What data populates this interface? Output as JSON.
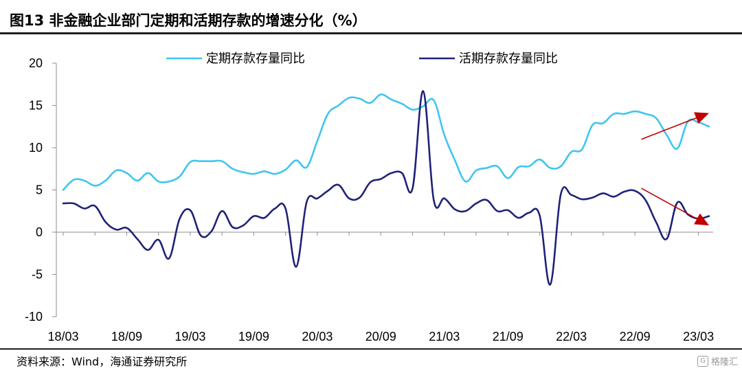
{
  "title": "图13 非金融企业部门定期和活期存款的增速分化（%）",
  "source": "资料来源：Wind，海通证券研究所",
  "watermark": "格隆汇",
  "chart_data": {
    "type": "line",
    "title": "",
    "xlabel": "",
    "ylabel": "",
    "ylim": [
      -10,
      20
    ],
    "yticks": [
      -10,
      -5,
      0,
      5,
      10,
      15,
      20
    ],
    "xtick_labels": [
      "18/03",
      "18/09",
      "19/03",
      "19/09",
      "20/03",
      "20/09",
      "21/03",
      "21/09",
      "22/03",
      "22/09",
      "23/03"
    ],
    "x": [
      "18/03",
      "18/04",
      "18/05",
      "18/06",
      "18/07",
      "18/08",
      "18/09",
      "18/10",
      "18/11",
      "18/12",
      "19/01",
      "19/02",
      "19/03",
      "19/04",
      "19/05",
      "19/06",
      "19/07",
      "19/08",
      "19/09",
      "19/10",
      "19/11",
      "19/12",
      "20/01",
      "20/02",
      "20/03",
      "20/04",
      "20/05",
      "20/06",
      "20/07",
      "20/08",
      "20/09",
      "20/10",
      "20/11",
      "20/12",
      "21/01",
      "21/02",
      "21/03",
      "21/04",
      "21/05",
      "21/06",
      "21/07",
      "21/08",
      "21/09",
      "21/10",
      "21/11",
      "21/12",
      "22/01",
      "22/02",
      "22/03",
      "22/04",
      "22/05",
      "22/06",
      "22/07",
      "22/08",
      "22/09",
      "22/10",
      "22/11",
      "22/12",
      "23/01",
      "23/02",
      "23/03",
      "23/04"
    ],
    "legend_position": "top",
    "grid": false,
    "series": [
      {
        "name": "定期存款存量同比",
        "color": "#3ec6ee",
        "values": [
          5.0,
          6.2,
          6.1,
          5.5,
          6.1,
          7.3,
          7.0,
          6.1,
          7.0,
          6.0,
          6.0,
          6.6,
          8.3,
          8.4,
          8.4,
          8.4,
          7.5,
          7.1,
          6.9,
          7.2,
          6.9,
          7.4,
          8.5,
          7.7,
          10.8,
          14.0,
          15.0,
          15.9,
          15.8,
          15.3,
          16.3,
          15.7,
          15.2,
          14.5,
          14.9,
          15.6,
          11.5,
          8.5,
          6.0,
          7.3,
          7.6,
          7.8,
          6.4,
          7.7,
          7.8,
          8.6,
          7.6,
          7.8,
          9.5,
          9.8,
          12.7,
          12.9,
          14.0,
          14.0,
          14.3,
          14.0,
          13.5,
          11.5,
          9.9,
          13.1,
          13.0,
          12.5
        ]
      },
      {
        "name": "活期存款存量同比",
        "color": "#1f2278",
        "values": [
          3.4,
          3.4,
          2.8,
          3.1,
          1.2,
          0.3,
          0.5,
          -0.8,
          -2.1,
          -0.9,
          -3.1,
          1.6,
          2.6,
          -0.4,
          0.1,
          2.5,
          0.6,
          0.8,
          1.9,
          1.7,
          2.8,
          2.8,
          -4.1,
          3.6,
          4.0,
          4.9,
          5.6,
          4.0,
          4.1,
          5.9,
          6.3,
          7.0,
          7.0,
          5.2,
          16.7,
          3.8,
          4.0,
          2.7,
          2.5,
          3.4,
          3.8,
          2.5,
          2.6,
          1.7,
          2.3,
          2.0,
          -6.2,
          4.5,
          4.4,
          3.9,
          4.1,
          4.6,
          4.2,
          4.8,
          4.9,
          3.8,
          1.2,
          -0.8,
          3.5,
          2.1,
          1.6,
          1.9
        ]
      }
    ],
    "annotations": [
      {
        "type": "arrow",
        "direction": "up",
        "color": "#c00000",
        "from": [
          "22/10",
          11.0
        ],
        "to": [
          "23/04",
          14.1
        ]
      },
      {
        "type": "arrow",
        "direction": "down",
        "color": "#c00000",
        "from": [
          "22/10",
          5.2
        ],
        "to": [
          "23/04",
          0.8
        ]
      }
    ]
  }
}
